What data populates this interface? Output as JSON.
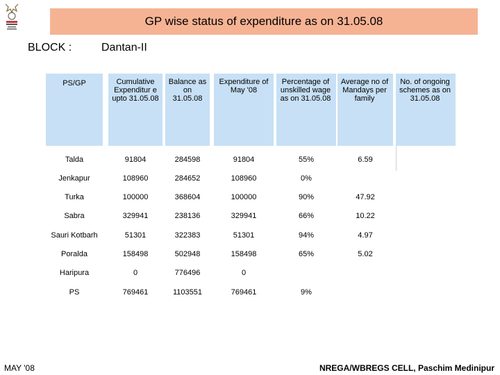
{
  "title": "GP wise status of expenditure as on 31.05.08",
  "block_label": "BLOCK :",
  "block_value": "Dantan-II",
  "headers": [
    "PS/GP",
    "Cumulative Expenditur e upto 31.05.08",
    "Balance as on 31.05.08",
    "Expenditure of May '08",
    "Percentage of unskilled wage as on 31.05.08",
    "Average no of Mandays per family",
    "No. of ongoing schemes as on 31.05.08"
  ],
  "rows": [
    [
      "Talda",
      "91804",
      "284598",
      "91804",
      "55%",
      "6.59",
      ""
    ],
    [
      "Jenkapur",
      "108960",
      "284652",
      "108960",
      "0%",
      "",
      ""
    ],
    [
      "Turka",
      "100000",
      "368604",
      "100000",
      "90%",
      "47.92",
      ""
    ],
    [
      "Sabra",
      "329941",
      "238136",
      "329941",
      "66%",
      "10.22",
      ""
    ],
    [
      "Sauri Kotbarh",
      "51301",
      "322383",
      "51301",
      "94%",
      "4.97",
      ""
    ],
    [
      "Poralda",
      "158498",
      "502948",
      "158498",
      "65%",
      "5.02",
      ""
    ],
    [
      "Haripura",
      "0",
      "776496",
      "0",
      "",
      "",
      ""
    ],
    [
      "PS",
      "769461",
      "1103551",
      "769461",
      "9%",
      "",
      ""
    ]
  ],
  "footer_left": "MAY '08",
  "footer_right": "NREGA/WBREGS CELL, Paschim Medinipur",
  "colors": {
    "title_bg": "#f6b394",
    "header_bg": "#c7e0f5"
  }
}
